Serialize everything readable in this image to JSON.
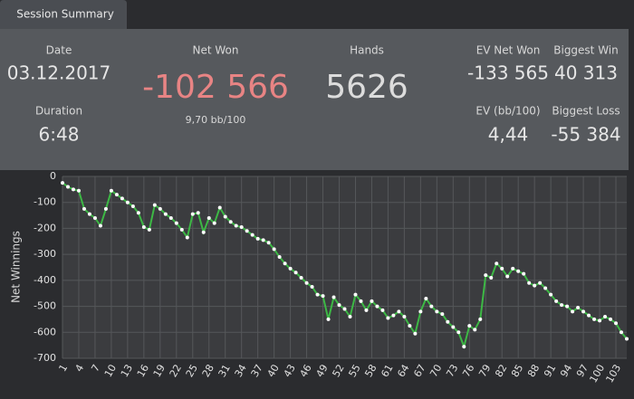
{
  "tab": "Session Summary",
  "stats": {
    "date": {
      "label": "Date",
      "value": "03.12.2017"
    },
    "duration": {
      "label": "Duration",
      "value": "6:48"
    },
    "net_won": {
      "label": "Net Won",
      "value": "-102 566",
      "sub": "9,70 bb/100"
    },
    "hands": {
      "label": "Hands",
      "value": "5626"
    },
    "ev_net_won": {
      "label": "EV Net Won",
      "value": "-133 565"
    },
    "ev_bb": {
      "label": "EV (bb/100)",
      "value": "4,44"
    },
    "biggest_win": {
      "label": "Biggest Win",
      "value": "40 313"
    },
    "biggest_loss": {
      "label": "Biggest Loss",
      "value": "-55 384"
    }
  },
  "chart_data": {
    "type": "line",
    "y_label": "Net Winnings",
    "grid": true,
    "xlim": [
      1,
      105
    ],
    "ylim": [
      -700,
      0
    ],
    "xticks": [
      1,
      4,
      7,
      10,
      13,
      16,
      19,
      22,
      25,
      28,
      31,
      34,
      37,
      40,
      43,
      46,
      49,
      52,
      55,
      58,
      61,
      64,
      67,
      70,
      73,
      76,
      79,
      82,
      85,
      88,
      91,
      94,
      97,
      100,
      103
    ],
    "yticks": [
      0,
      -100,
      -200,
      -300,
      -400,
      -500,
      -600,
      -700
    ],
    "x": [
      1,
      2,
      3,
      4,
      5,
      6,
      7,
      8,
      9,
      10,
      11,
      12,
      13,
      14,
      15,
      16,
      17,
      18,
      19,
      20,
      21,
      22,
      23,
      24,
      25,
      26,
      27,
      28,
      29,
      30,
      31,
      32,
      33,
      34,
      35,
      36,
      37,
      38,
      39,
      40,
      41,
      42,
      43,
      44,
      45,
      46,
      47,
      48,
      49,
      50,
      51,
      52,
      53,
      54,
      55,
      56,
      57,
      58,
      59,
      60,
      61,
      62,
      63,
      64,
      65,
      66,
      67,
      68,
      69,
      70,
      71,
      72,
      73,
      74,
      75,
      76,
      77,
      78,
      79,
      80,
      81,
      82,
      83,
      84,
      85,
      86,
      87,
      88,
      89,
      90,
      91,
      92,
      93,
      94,
      95,
      96,
      97,
      98,
      99,
      100,
      101,
      102,
      103,
      104,
      105
    ],
    "series": [
      {
        "name": "Net Winnings",
        "color": "#3db845",
        "values": [
          -25,
          -40,
          -50,
          -55,
          -125,
          -145,
          -160,
          -190,
          -125,
          -55,
          -70,
          -85,
          -100,
          -115,
          -140,
          -195,
          -205,
          -110,
          -125,
          -145,
          -160,
          -180,
          -205,
          -235,
          -145,
          -140,
          -215,
          -160,
          -180,
          -120,
          -155,
          -175,
          -190,
          -195,
          -210,
          -225,
          -240,
          -245,
          -255,
          -280,
          -310,
          -335,
          -355,
          -370,
          -390,
          -410,
          -425,
          -455,
          -460,
          -550,
          -465,
          -495,
          -510,
          -540,
          -455,
          -480,
          -515,
          -480,
          -500,
          -515,
          -545,
          -535,
          -520,
          -540,
          -575,
          -605,
          -520,
          -470,
          -500,
          -520,
          -530,
          -560,
          -580,
          -600,
          -655,
          -575,
          -590,
          -550,
          -380,
          -390,
          -335,
          -355,
          -385,
          -355,
          -365,
          -375,
          -410,
          -420,
          -410,
          -430,
          -455,
          -480,
          -495,
          -500,
          -520,
          -505,
          -520,
          -535,
          -550,
          -555,
          -540,
          -550,
          -565,
          -600,
          -625
        ]
      }
    ]
  }
}
